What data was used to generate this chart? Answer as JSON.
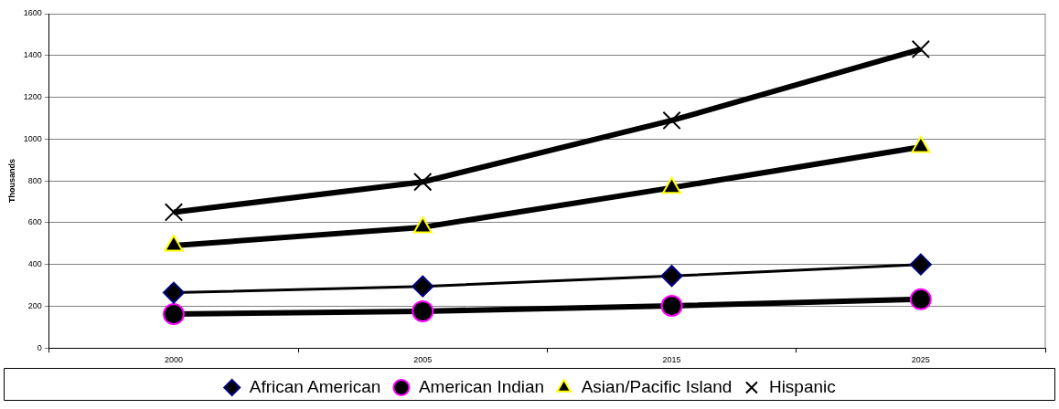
{
  "chart_data": {
    "type": "line",
    "ylabel": "Thousands",
    "categories": [
      "2000",
      "2005",
      "2015",
      "2025"
    ],
    "series": [
      {
        "name": "African American",
        "color": "#000000",
        "marker": "diamond",
        "values": [
          265,
          295,
          345,
          400
        ]
      },
      {
        "name": "American Indian",
        "color": "#000000",
        "marker": "circle",
        "values": [
          162,
          176,
          202,
          233
        ]
      },
      {
        "name": "Asian/Pacific Island",
        "color": "#000000",
        "marker": "triangle",
        "values": [
          490,
          578,
          767,
          962
        ]
      },
      {
        "name": "Hispanic",
        "color": "#000000",
        "marker": "cross",
        "values": [
          650,
          795,
          1089,
          1430
        ]
      }
    ],
    "ylim": [
      0,
      1600
    ],
    "yticks": [
      0,
      200,
      400,
      600,
      800,
      1000,
      1200,
      1400,
      1600
    ],
    "grid": "y",
    "legend": "bottom"
  }
}
